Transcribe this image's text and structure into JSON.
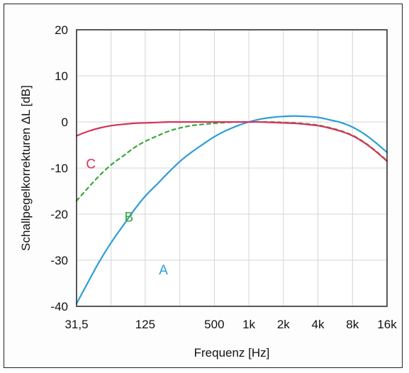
{
  "chart_data": {
    "type": "line",
    "title": "",
    "xlabel": "Frequenz [Hz]",
    "ylabel": "Schallpegelkorrekturen ΔL [dB]",
    "x_scale": "log",
    "xlim": [
      31.5,
      16000
    ],
    "ylim": [
      -40,
      20
    ],
    "grid": true,
    "x_ticks": [
      {
        "value": 31.5,
        "label": "31,5"
      },
      {
        "value": 125,
        "label": "125"
      },
      {
        "value": 500,
        "label": "500"
      },
      {
        "value": 1000,
        "label": "1k"
      },
      {
        "value": 2000,
        "label": "2k"
      },
      {
        "value": 4000,
        "label": "4k"
      },
      {
        "value": 8000,
        "label": "8k"
      },
      {
        "value": 16000,
        "label": "16k"
      }
    ],
    "x_gridlines": [
      31.5,
      63,
      125,
      250,
      500,
      1000,
      2000,
      4000,
      8000,
      16000
    ],
    "y_ticks": [
      {
        "value": 20,
        "label": "20"
      },
      {
        "value": 10,
        "label": "10"
      },
      {
        "value": 0,
        "label": "0"
      },
      {
        "value": -10,
        "label": "-10"
      },
      {
        "value": -20,
        "label": "-20"
      },
      {
        "value": -30,
        "label": "-30"
      },
      {
        "value": -40,
        "label": "-40"
      }
    ],
    "series": [
      {
        "name": "A",
        "color": "#2a9fd6",
        "dash": false,
        "x": [
          31.5,
          40,
          50,
          63,
          80,
          100,
          125,
          160,
          200,
          250,
          315,
          400,
          500,
          630,
          800,
          1000,
          1250,
          1600,
          2000,
          2500,
          3150,
          4000,
          5000,
          6300,
          8000,
          10000,
          12500,
          16000
        ],
        "y": [
          -39.4,
          -34.6,
          -30.2,
          -26.2,
          -22.5,
          -19.1,
          -16.1,
          -13.4,
          -10.9,
          -8.6,
          -6.6,
          -4.8,
          -3.2,
          -1.9,
          -0.8,
          0.0,
          0.6,
          1.0,
          1.2,
          1.3,
          1.2,
          1.0,
          0.5,
          -0.1,
          -1.1,
          -2.5,
          -4.3,
          -6.6
        ]
      },
      {
        "name": "B",
        "color": "#3aa63a",
        "dash": true,
        "x": [
          31.5,
          40,
          50,
          63,
          80,
          100,
          125,
          160,
          200,
          250,
          315,
          400,
          500,
          630,
          800,
          1000,
          1250,
          1600,
          2000,
          2500,
          3150,
          4000,
          5000,
          6300,
          8000,
          10000,
          12500,
          16000
        ],
        "y": [
          -17.1,
          -14.2,
          -11.6,
          -9.3,
          -7.4,
          -5.6,
          -4.2,
          -3.0,
          -2.0,
          -1.3,
          -0.8,
          -0.5,
          -0.3,
          -0.1,
          0.0,
          0.0,
          0.0,
          0.0,
          -0.1,
          -0.2,
          -0.4,
          -0.7,
          -1.2,
          -1.9,
          -2.9,
          -4.3,
          -6.1,
          -8.4
        ]
      },
      {
        "name": "C",
        "color": "#d6335a",
        "dash": false,
        "x": [
          31.5,
          40,
          50,
          63,
          80,
          100,
          125,
          160,
          200,
          250,
          315,
          400,
          500,
          630,
          800,
          1000,
          1250,
          1600,
          2000,
          2500,
          3150,
          4000,
          5000,
          6300,
          8000,
          10000,
          12500,
          16000
        ],
        "y": [
          -3.0,
          -2.0,
          -1.3,
          -0.8,
          -0.5,
          -0.3,
          -0.2,
          -0.1,
          0.0,
          0.0,
          0.0,
          0.0,
          0.0,
          0.0,
          0.0,
          0.0,
          0.0,
          -0.1,
          -0.2,
          -0.3,
          -0.5,
          -0.8,
          -1.3,
          -2.0,
          -3.0,
          -4.4,
          -6.2,
          -8.5
        ]
      }
    ]
  }
}
